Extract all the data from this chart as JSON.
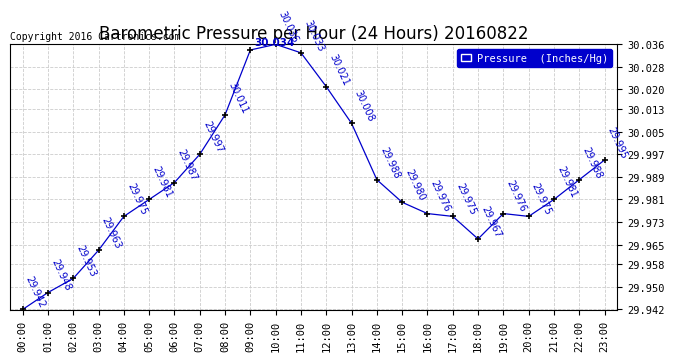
{
  "title": "Barometric Pressure per Hour (24 Hours) 20160822",
  "copyright": "Copyright 2016 Cartronics.com",
  "legend_label": "Pressure  (Inches/Hg)",
  "hours": [
    "00:00",
    "01:00",
    "02:00",
    "03:00",
    "04:00",
    "05:00",
    "06:00",
    "07:00",
    "08:00",
    "09:00",
    "10:00",
    "11:00",
    "12:00",
    "13:00",
    "14:00",
    "15:00",
    "16:00",
    "17:00",
    "18:00",
    "19:00",
    "20:00",
    "21:00",
    "22:00",
    "23:00"
  ],
  "values": [
    29.942,
    29.948,
    29.953,
    29.963,
    29.975,
    29.981,
    29.987,
    29.997,
    30.011,
    30.034,
    30.036,
    30.033,
    30.021,
    30.008,
    29.988,
    29.98,
    29.976,
    29.975,
    29.967,
    29.976,
    29.975,
    29.981,
    29.988,
    29.995
  ],
  "peak_idx": 10,
  "peak_label": "30.034",
  "peak_label_idx": 9,
  "ylim_min": 29.942,
  "ylim_max": 30.036,
  "yticks": [
    29.942,
    29.95,
    29.958,
    29.965,
    29.973,
    29.981,
    29.989,
    29.997,
    30.005,
    30.013,
    30.02,
    30.028,
    30.036
  ],
  "line_color": "#0000cc",
  "marker_color": "#000000",
  "label_color": "#0000cc",
  "title_color": "#000000",
  "bg_color": "#ffffff",
  "grid_color": "#cccccc",
  "title_fontsize": 12,
  "label_fontsize": 7,
  "tick_fontsize": 7.5,
  "copyright_fontsize": 7
}
